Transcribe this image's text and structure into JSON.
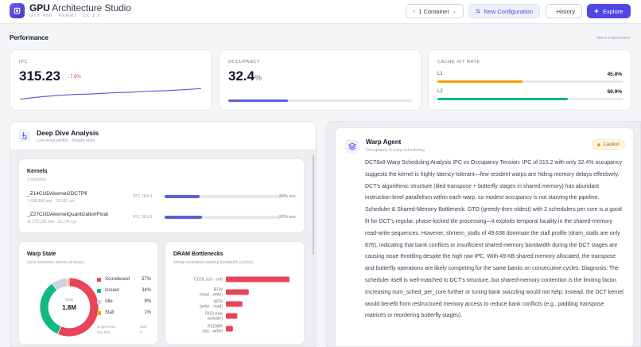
{
  "header": {
    "brand_bold": "GPU",
    "brand_rest": "Architecture Studio",
    "subtitle": "GTX 480 · FERMI · CC 2.0",
    "container_label": "1 Container",
    "new_config_label": "New Configuration",
    "history_label": "History",
    "explore_label": "Explore"
  },
  "performance": {
    "title": "Performance",
    "latest_label": "latest experiment",
    "ipc": {
      "label": "IPC",
      "value": "315.23",
      "delta": "↓7.6%"
    },
    "occupancy": {
      "label": "OCCUPANCY",
      "value": "32.4",
      "unit": "%",
      "fraction": 0.324
    },
    "cache": {
      "label": "CACHE HIT RATE",
      "l1": {
        "label": "L1",
        "value": "45.8%",
        "fraction": 0.458,
        "color": "#f59e0b"
      },
      "l2": {
        "label": "L2",
        "value": "69.9%",
        "fraction": 0.699,
        "color": "#10b981"
      }
    }
  },
  "deep_dive": {
    "title": "Deep Dive Analysis",
    "subtitle": "Low-level profile · Nsight-style",
    "kernels": {
      "title": "Kernels",
      "count": "2 launches",
      "items": [
        {
          "name": "_Z14CUDAkernel2DCTPfi",
          "meta": "7,438,336 inst · 26,181 cyc",
          "ipc": "IPC 283.9",
          "occ": "30% occ",
          "fraction": 0.3
        },
        {
          "name": "_Z27CUDAkernelQuantizationFloat",
          "meta": "11,272,192 inst · 31,174 cyc",
          "ipc": "IPC 361.6",
          "occ": "32% occ",
          "fraction": 0.32
        }
      ]
    },
    "warp_state": {
      "title": "Warp State",
      "subtitle": "cycle outcomes across all warps",
      "total_label": "total",
      "total": "1.8M",
      "legend": [
        {
          "name": "Scoreboard",
          "pct": "57%",
          "value": 57,
          "color": "#e8445a"
        },
        {
          "name": "Issued",
          "pct": "34%",
          "value": 34,
          "color": "#10b981"
        },
        {
          "name": "Idle",
          "pct": "9%",
          "value": 9,
          "color": "#cbd5e1"
        },
        {
          "name": "Stall",
          "pct": "1%",
          "value": 1,
          "color": "#f59e0b"
        }
      ],
      "foot_left_label": "single-issue",
      "foot_left_value": "592,896",
      "foot_right_label": "dual",
      "foot_right_value": "0"
    },
    "dram": {
      "title": "DRAM Bottlenecks",
      "subtitle": "timing constraints wasting bandwidth (cycles)",
      "color": "#e8445a"
    }
  },
  "agent": {
    "title": "Warp Agent",
    "subtitle": "Occupancy & warp scheduling",
    "badge": "Caution",
    "body": "DCT8x8 Warp Scheduling Analysis IPC vs Occupancy Tension: IPC of 315.2 with only 32.4% occupancy suggests the kernel is highly latency-tolerant—few resident warps are hiding memory delays effectively. DCT's algorithmic structure (tiled transpose + butterfly stages in shared memory) has abundant instruction-level parallelism within each warp, so modest occupancy is not starving the pipeline. Scheduler & Shared-Memory Bottleneck: GTO (greedy-then-oldest) with 2 schedulers per core is a good fit for DCT's regular, phase-locked tile processing—it exploits temporal locality in the shared-memory read-write sequences. However, shmem_stalls of 49,638 dominate the stall profile (dram_stalls are only 876), indicating that bank conflicts or insufficient shared-memory bandwidth during the DCT stages are causing issue throttling despite the high raw IPC. With 49 KB shared memory allocated, the transpose and butterfly operations are likely competing for the same banks on consecutive cycles. Diagnosis: The scheduler itself is well-matched to DCT's structure, but shared-memory contention is the limiting factor. Increasing num_sched_per_core further or tuning bank swizzling would not help; instead, the DCT kernel would benefit from restructured memory access to reduce bank conflicts (e.g., padding transpose matrices or reordering butterfly stages)."
  },
  "chart_data": [
    {
      "type": "line",
      "x": [
        1,
        2,
        3,
        4,
        5,
        6,
        7,
        8,
        9,
        10,
        11
      ],
      "y": [
        296,
        300,
        303,
        305,
        306,
        308,
        309,
        311,
        312,
        314,
        316
      ]
    },
    {
      "type": "pie",
      "categories": [
        "Scoreboard",
        "Issued",
        "Idle",
        "Stall"
      ],
      "values": [
        57,
        34,
        9,
        1
      ]
    },
    {
      "type": "bar",
      "title": "DRAM Bottlenecks",
      "categories": [
        [
          "CCDL (col→col)"
        ],
        [
          "RTW",
          "(read→write)"
        ],
        [
          "WTR",
          "(write→read)"
        ],
        [
          "RCD (row",
          "activate)"
        ],
        [
          "RCDWR",
          "(act→write)"
        ]
      ],
      "values": [
        100,
        36,
        26,
        18,
        11
      ],
      "xlim": [
        0,
        100
      ]
    }
  ]
}
